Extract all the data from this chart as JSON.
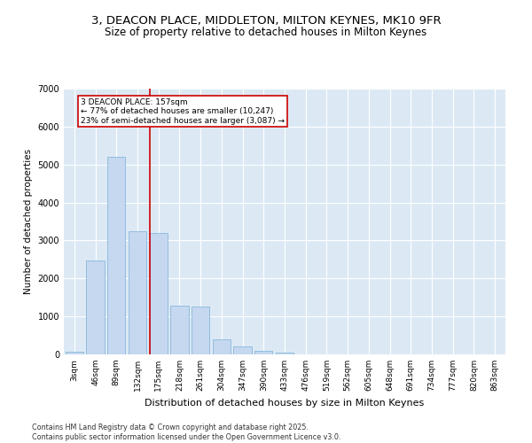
{
  "title_line1": "3, DEACON PLACE, MIDDLETON, MILTON KEYNES, MK10 9FR",
  "title_line2": "Size of property relative to detached houses in Milton Keynes",
  "xlabel": "Distribution of detached houses by size in Milton Keynes",
  "ylabel": "Number of detached properties",
  "categories": [
    "3sqm",
    "46sqm",
    "89sqm",
    "132sqm",
    "175sqm",
    "218sqm",
    "261sqm",
    "304sqm",
    "347sqm",
    "390sqm",
    "433sqm",
    "476sqm",
    "519sqm",
    "562sqm",
    "605sqm",
    "648sqm",
    "691sqm",
    "734sqm",
    "777sqm",
    "820sqm",
    "863sqm"
  ],
  "values": [
    80,
    2480,
    5200,
    3250,
    3200,
    1280,
    1260,
    390,
    200,
    100,
    50,
    10,
    5,
    2,
    1,
    0,
    0,
    0,
    0,
    0,
    0
  ],
  "bar_color": "#c5d8f0",
  "bar_edge_color": "#7aafd4",
  "vline_color": "#cc0000",
  "annotation_title": "3 DEACON PLACE: 157sqm",
  "annotation_line1": "← 77% of detached houses are smaller (10,247)",
  "annotation_line2": "23% of semi-detached houses are larger (3,087) →",
  "annotation_box_color": "#cc0000",
  "ylim": [
    0,
    7000
  ],
  "yticks": [
    0,
    1000,
    2000,
    3000,
    4000,
    5000,
    6000,
    7000
  ],
  "background_color": "#dce9f5",
  "grid_color": "#ffffff",
  "footer_line1": "Contains HM Land Registry data © Crown copyright and database right 2025.",
  "footer_line2": "Contains public sector information licensed under the Open Government Licence v3.0.",
  "title_fontsize": 9.5,
  "subtitle_fontsize": 8.5
}
